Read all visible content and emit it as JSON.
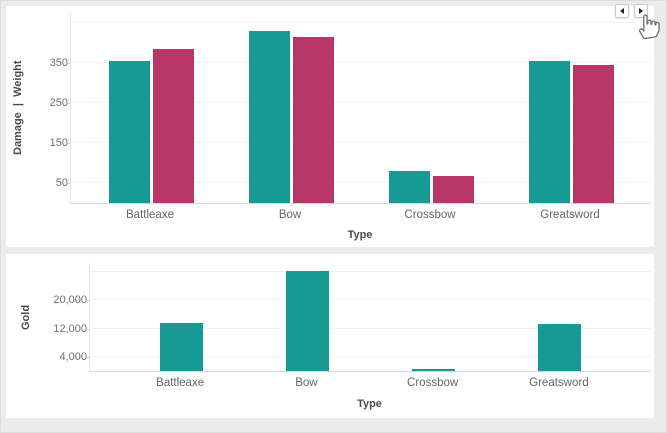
{
  "page": {
    "background": "#ebebeb",
    "card_background": "#ffffff"
  },
  "nav": {
    "prev_icon": "left-triangle-icon",
    "next_icon": "right-triangle-icon"
  },
  "colors": {
    "teal": "#179a96",
    "crimson": "#b93766",
    "gridline": "#f1f1f1",
    "axis_line": "#d7d7d7",
    "tick_text": "#6e6e6e",
    "category_text": "#666666",
    "axis_title_text": "#4b4b4b"
  },
  "chart_data": [
    {
      "type": "bar",
      "title": "",
      "categories": [
        "Battleaxe",
        "Bow",
        "Crossbow",
        "Greatsword"
      ],
      "series": [
        {
          "name": "Damage",
          "color": "#179a96",
          "values": [
            355,
            430,
            80,
            355
          ]
        },
        {
          "name": "Weight",
          "color": "#b93766",
          "values": [
            385,
            415,
            68,
            345
          ]
        }
      ],
      "xlabel": "Type",
      "ylabel": "Damage  |  Weight",
      "yticks": [
        50,
        150,
        250,
        350
      ],
      "gridlines": [
        50,
        150,
        250,
        350,
        450
      ],
      "ylim": [
        0,
        475
      ],
      "grid": true,
      "legend": "none",
      "tick_format": "plain"
    },
    {
      "type": "bar",
      "title": "",
      "categories": [
        "Battleaxe",
        "Bow",
        "Crossbow",
        "Greatsword"
      ],
      "series": [
        {
          "name": "Gold",
          "color": "#179a96",
          "values": [
            13500,
            28200,
            600,
            13400
          ]
        }
      ],
      "xlabel": "Type",
      "ylabel": "Gold",
      "yticks": [
        4000,
        12000,
        20000
      ],
      "gridlines": [
        4000,
        12000,
        20000,
        28000
      ],
      "ylim": [
        0,
        30500
      ],
      "grid": true,
      "legend": "none",
      "tick_format": "comma"
    }
  ]
}
